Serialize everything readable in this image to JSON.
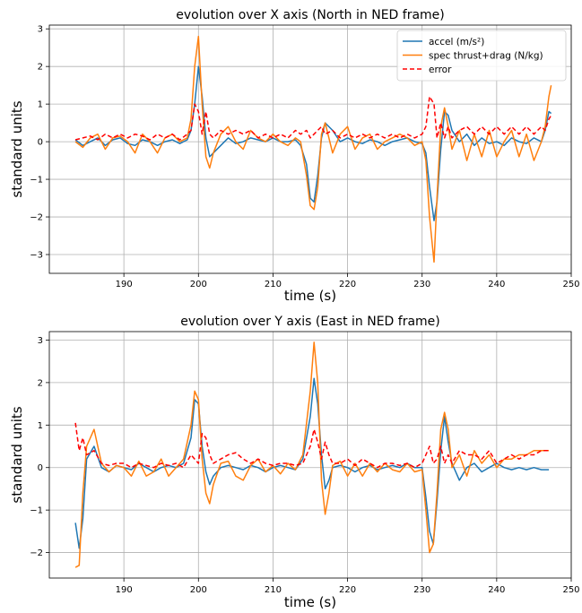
{
  "chart_data": [
    {
      "type": "line",
      "title": "evolution over X axis (North in NED frame)",
      "xlabel": "time (s)",
      "ylabel": "standard units",
      "xlim": [
        180,
        250
      ],
      "ylim": [
        -3.5,
        3.1
      ],
      "xticks": [
        190,
        200,
        210,
        220,
        230,
        240,
        250
      ],
      "yticks": [
        3,
        2,
        1,
        0,
        -1,
        -2,
        -3
      ],
      "xtick_labels": [
        "190",
        "200",
        "210",
        "220",
        "230",
        "240",
        "250"
      ],
      "ytick_labels": [
        "3",
        "2",
        "1",
        "0",
        "−1",
        "−2",
        "−3"
      ],
      "grid": true,
      "legend_position": "upper-right",
      "series": [
        {
          "name": "accel (m/s²)",
          "color": "#1f77b4",
          "style": "solid",
          "x": [
            183.5,
            184.5,
            185.5,
            186.5,
            187.5,
            188.5,
            189.5,
            190.5,
            191.5,
            192.5,
            193.5,
            194.5,
            195.5,
            196.5,
            197.5,
            198.5,
            199.0,
            199.5,
            200.0,
            200.5,
            201.0,
            201.5,
            202.0,
            203.0,
            204.0,
            205.0,
            206.0,
            207.0,
            208.0,
            209.0,
            210.0,
            211.0,
            212.0,
            213.0,
            213.7,
            214.5,
            215.0,
            215.5,
            216.0,
            216.5,
            217.0,
            218.0,
            219.0,
            220.0,
            221.0,
            222.0,
            223.0,
            224.0,
            225.0,
            226.0,
            227.0,
            228.0,
            229.0,
            230.0,
            230.5,
            231.0,
            231.6,
            232.0,
            232.5,
            233.0,
            233.5,
            234.0,
            235.0,
            236.0,
            237.0,
            238.0,
            239.0,
            240.0,
            241.0,
            242.0,
            243.0,
            244.0,
            245.0,
            246.0,
            246.5,
            247.0,
            247.3
          ],
          "y": [
            0.05,
            -0.1,
            0.0,
            0.1,
            -0.1,
            0.05,
            0.1,
            -0.05,
            -0.1,
            0.05,
            0.0,
            -0.1,
            0.0,
            0.05,
            -0.05,
            0.05,
            0.3,
            1.0,
            2.0,
            1.2,
            0.1,
            -0.4,
            -0.3,
            -0.1,
            0.1,
            -0.05,
            0.0,
            0.1,
            0.05,
            0.0,
            0.1,
            0.0,
            0.0,
            0.05,
            -0.1,
            -0.6,
            -1.5,
            -1.6,
            -0.9,
            0.1,
            0.5,
            0.3,
            0.0,
            0.1,
            0.0,
            -0.05,
            0.05,
            0.0,
            -0.1,
            0.0,
            0.05,
            0.1,
            0.0,
            -0.05,
            -0.3,
            -1.2,
            -2.1,
            -1.6,
            -0.2,
            0.8,
            0.7,
            0.3,
            0.0,
            0.2,
            -0.1,
            0.1,
            -0.05,
            0.0,
            -0.1,
            0.1,
            0.0,
            -0.05,
            0.1,
            0.0,
            0.3,
            0.8,
            0.75
          ]
        },
        {
          "name": "spec thrust+drag (N/kg)",
          "color": "#ff7f0e",
          "style": "solid",
          "x": [
            183.5,
            184.5,
            185.5,
            186.5,
            187.5,
            188.5,
            189.5,
            190.5,
            191.5,
            192.5,
            193.5,
            194.5,
            195.5,
            196.5,
            197.5,
            198.5,
            199.0,
            199.5,
            200.0,
            200.5,
            201.0,
            201.5,
            202.0,
            203.0,
            204.0,
            205.0,
            206.0,
            207.0,
            208.0,
            209.0,
            210.0,
            211.0,
            212.0,
            213.0,
            213.7,
            214.5,
            215.0,
            215.5,
            216.0,
            216.5,
            217.0,
            218.0,
            219.0,
            220.0,
            221.0,
            222.0,
            223.0,
            224.0,
            225.0,
            226.0,
            227.0,
            228.0,
            229.0,
            230.0,
            230.5,
            231.0,
            231.6,
            232.0,
            232.5,
            233.0,
            233.5,
            234.0,
            235.0,
            236.0,
            237.0,
            238.0,
            239.0,
            240.0,
            241.0,
            242.0,
            243.0,
            244.0,
            245.0,
            246.0,
            246.5,
            247.0,
            247.3
          ],
          "y": [
            0.0,
            -0.15,
            0.1,
            0.2,
            -0.2,
            0.1,
            0.15,
            0.0,
            -0.3,
            0.2,
            0.0,
            -0.3,
            0.1,
            0.2,
            0.0,
            0.1,
            0.6,
            2.0,
            2.8,
            1.0,
            -0.4,
            -0.7,
            -0.3,
            0.2,
            0.4,
            0.0,
            -0.2,
            0.3,
            0.1,
            0.0,
            0.2,
            0.0,
            -0.1,
            0.1,
            0.0,
            -0.9,
            -1.7,
            -1.8,
            -1.2,
            0.2,
            0.5,
            -0.3,
            0.2,
            0.4,
            -0.2,
            0.1,
            0.2,
            -0.2,
            0.0,
            0.1,
            0.2,
            0.1,
            -0.1,
            0.0,
            -0.5,
            -2.0,
            -3.2,
            -1.5,
            0.4,
            0.9,
            0.4,
            -0.2,
            0.3,
            -0.5,
            0.2,
            -0.4,
            0.3,
            -0.4,
            0.0,
            0.3,
            -0.4,
            0.2,
            -0.5,
            0.0,
            0.4,
            1.2,
            1.5
          ]
        },
        {
          "name": "error",
          "color": "#ff0000",
          "style": "dashed",
          "x": [
            183.5,
            184.5,
            185.5,
            186.5,
            187.5,
            188.5,
            189.5,
            190.5,
            191.5,
            192.5,
            193.5,
            194.5,
            195.5,
            196.5,
            197.5,
            198.5,
            199.0,
            199.5,
            200.0,
            200.5,
            201.0,
            201.5,
            202.0,
            203.0,
            204.0,
            205.0,
            206.0,
            207.0,
            208.0,
            209.0,
            210.0,
            211.0,
            212.0,
            213.0,
            213.7,
            214.5,
            215.0,
            215.5,
            216.0,
            216.5,
            217.0,
            218.0,
            219.0,
            220.0,
            221.0,
            222.0,
            223.0,
            224.0,
            225.0,
            226.0,
            227.0,
            228.0,
            229.0,
            230.0,
            230.5,
            231.0,
            231.6,
            232.0,
            232.5,
            233.0,
            233.5,
            234.0,
            235.0,
            236.0,
            237.0,
            238.0,
            239.0,
            240.0,
            241.0,
            242.0,
            243.0,
            244.0,
            245.0,
            246.0,
            246.5,
            247.0,
            247.3
          ],
          "y": [
            0.05,
            0.1,
            0.15,
            0.05,
            0.2,
            0.1,
            0.2,
            0.1,
            0.2,
            0.15,
            0.05,
            0.2,
            0.1,
            0.2,
            0.05,
            0.2,
            0.3,
            1.0,
            0.8,
            0.2,
            0.8,
            0.2,
            0.1,
            0.3,
            0.2,
            0.3,
            0.2,
            0.3,
            0.1,
            0.2,
            0.1,
            0.2,
            0.1,
            0.3,
            0.2,
            0.3,
            0.1,
            0.2,
            0.3,
            0.4,
            0.2,
            0.3,
            0.1,
            0.2,
            0.1,
            0.2,
            0.1,
            0.2,
            0.1,
            0.2,
            0.1,
            0.2,
            0.1,
            0.2,
            0.4,
            1.2,
            1.0,
            0.1,
            0.5,
            0.1,
            0.4,
            0.1,
            0.3,
            0.4,
            0.2,
            0.4,
            0.2,
            0.4,
            0.2,
            0.4,
            0.2,
            0.4,
            0.2,
            0.4,
            0.3,
            0.6,
            0.7
          ]
        }
      ]
    },
    {
      "type": "line",
      "title": "evolution over Y axis (East in NED frame)",
      "xlabel": "time (s)",
      "ylabel": "standard units",
      "xlim": [
        180,
        250
      ],
      "ylim": [
        -2.6,
        3.2
      ],
      "xticks": [
        190,
        200,
        210,
        220,
        230,
        240,
        250
      ],
      "yticks": [
        3,
        2,
        1,
        0,
        -1,
        -2
      ],
      "xtick_labels": [
        "190",
        "200",
        "210",
        "220",
        "230",
        "240",
        "250"
      ],
      "ytick_labels": [
        "3",
        "2",
        "1",
        "0",
        "−1",
        "−2"
      ],
      "grid": true,
      "series": [
        {
          "name": "accel (m/s²)",
          "color": "#1f77b4",
          "style": "solid",
          "x": [
            183.5,
            184.0,
            184.5,
            185.0,
            186.0,
            187.0,
            188.0,
            189.0,
            190.0,
            191.0,
            192.0,
            193.0,
            194.0,
            195.0,
            196.0,
            197.0,
            198.0,
            199.0,
            199.5,
            200.0,
            200.5,
            201.0,
            201.5,
            202.0,
            203.0,
            204.0,
            205.0,
            206.0,
            207.0,
            208.0,
            209.0,
            210.0,
            211.0,
            212.0,
            213.0,
            214.0,
            215.0,
            215.5,
            216.0,
            216.5,
            217.0,
            217.5,
            218.0,
            219.0,
            220.0,
            221.0,
            222.0,
            223.0,
            224.0,
            225.0,
            226.0,
            227.0,
            228.0,
            229.0,
            230.0,
            230.5,
            231.0,
            231.5,
            232.0,
            232.5,
            233.0,
            233.5,
            234.0,
            235.0,
            236.0,
            237.0,
            238.0,
            239.0,
            240.0,
            241.0,
            242.0,
            243.0,
            244.0,
            245.0,
            246.0,
            247.0
          ],
          "y": [
            -1.3,
            -1.9,
            -1.2,
            0.2,
            0.5,
            0.0,
            -0.1,
            0.05,
            0.0,
            -0.05,
            0.1,
            0.0,
            -0.1,
            0.0,
            0.05,
            0.0,
            0.1,
            0.7,
            1.6,
            1.5,
            0.5,
            -0.1,
            -0.4,
            -0.2,
            0.0,
            0.05,
            0.0,
            -0.05,
            0.05,
            0.0,
            -0.1,
            0.0,
            0.05,
            0.0,
            -0.05,
            0.2,
            1.2,
            2.1,
            1.5,
            0.3,
            -0.5,
            -0.3,
            0.0,
            0.05,
            0.0,
            -0.1,
            0.0,
            0.05,
            -0.05,
            0.0,
            0.05,
            0.0,
            0.1,
            0.0,
            0.0,
            -0.7,
            -1.5,
            -1.8,
            -0.8,
            0.4,
            1.2,
            0.6,
            0.1,
            -0.3,
            0.0,
            0.1,
            -0.1,
            0.0,
            0.1,
            0.0,
            -0.05,
            0.0,
            -0.05,
            0.0,
            -0.05,
            -0.05
          ]
        },
        {
          "name": "spec thrust+drag (N/kg)",
          "color": "#ff7f0e",
          "style": "solid",
          "x": [
            183.5,
            184.0,
            184.5,
            185.0,
            186.0,
            187.0,
            188.0,
            189.0,
            190.0,
            191.0,
            192.0,
            193.0,
            194.0,
            195.0,
            196.0,
            197.0,
            198.0,
            199.0,
            199.5,
            200.0,
            200.5,
            201.0,
            201.5,
            202.0,
            203.0,
            204.0,
            205.0,
            206.0,
            207.0,
            208.0,
            209.0,
            210.0,
            211.0,
            212.0,
            213.0,
            214.0,
            215.0,
            215.5,
            216.0,
            216.5,
            217.0,
            217.5,
            218.0,
            219.0,
            220.0,
            221.0,
            222.0,
            223.0,
            224.0,
            225.0,
            226.0,
            227.0,
            228.0,
            229.0,
            230.0,
            230.5,
            231.0,
            231.5,
            232.0,
            232.5,
            233.0,
            233.5,
            234.0,
            235.0,
            236.0,
            237.0,
            238.0,
            239.0,
            240.0,
            241.0,
            242.0,
            243.0,
            244.0,
            245.0,
            246.0,
            247.0
          ],
          "y": [
            -2.35,
            -2.3,
            -0.6,
            0.5,
            0.9,
            0.1,
            -0.1,
            0.05,
            0.0,
            -0.2,
            0.15,
            -0.2,
            -0.1,
            0.2,
            -0.2,
            0.0,
            0.2,
            1.0,
            1.8,
            1.6,
            0.2,
            -0.6,
            -0.85,
            -0.4,
            0.1,
            0.15,
            -0.2,
            -0.3,
            0.05,
            0.2,
            -0.1,
            0.05,
            -0.15,
            0.1,
            -0.05,
            0.3,
            1.8,
            2.95,
            2.0,
            -0.3,
            -1.1,
            -0.6,
            0.05,
            0.15,
            -0.2,
            0.1,
            -0.2,
            0.1,
            -0.1,
            0.1,
            -0.05,
            -0.1,
            0.1,
            -0.1,
            -0.05,
            -1.0,
            -2.0,
            -1.8,
            -0.6,
            0.9,
            1.3,
            0.9,
            0.0,
            0.3,
            -0.2,
            0.4,
            0.1,
            0.3,
            0.0,
            0.2,
            0.2,
            0.3,
            0.3,
            0.4,
            0.4,
            0.4
          ]
        },
        {
          "name": "error",
          "color": "#ff0000",
          "style": "dashed",
          "x": [
            183.5,
            184.0,
            184.5,
            185.0,
            186.0,
            187.0,
            188.0,
            189.0,
            190.0,
            191.0,
            192.0,
            193.0,
            194.0,
            195.0,
            196.0,
            197.0,
            198.0,
            199.0,
            199.5,
            200.0,
            200.5,
            201.0,
            201.5,
            202.0,
            203.0,
            204.0,
            205.0,
            206.0,
            207.0,
            208.0,
            209.0,
            210.0,
            211.0,
            212.0,
            213.0,
            214.0,
            215.0,
            215.5,
            216.0,
            216.5,
            217.0,
            217.5,
            218.0,
            219.0,
            220.0,
            221.0,
            222.0,
            223.0,
            224.0,
            225.0,
            226.0,
            227.0,
            228.0,
            229.0,
            230.0,
            230.5,
            231.0,
            231.5,
            232.0,
            232.5,
            233.0,
            233.5,
            234.0,
            235.0,
            236.0,
            237.0,
            238.0,
            239.0,
            240.0,
            241.0,
            242.0,
            243.0,
            244.0,
            245.0,
            246.0,
            247.0
          ],
          "y": [
            1.05,
            0.4,
            0.7,
            0.3,
            0.4,
            0.1,
            0.05,
            0.1,
            0.1,
            0.0,
            0.1,
            0.05,
            0.0,
            0.1,
            0.05,
            0.1,
            0.0,
            0.3,
            0.2,
            0.1,
            0.8,
            0.7,
            0.3,
            0.1,
            0.2,
            0.3,
            0.35,
            0.2,
            0.1,
            0.2,
            0.1,
            0.05,
            0.1,
            0.1,
            0.05,
            0.1,
            0.5,
            0.9,
            0.6,
            0.2,
            0.6,
            0.3,
            0.1,
            0.1,
            0.2,
            0.05,
            0.2,
            0.1,
            0.0,
            0.1,
            0.1,
            0.05,
            0.1,
            0.0,
            0.1,
            0.3,
            0.5,
            0.1,
            0.2,
            0.5,
            0.1,
            0.3,
            0.1,
            0.4,
            0.3,
            0.3,
            0.2,
            0.4,
            0.1,
            0.2,
            0.3,
            0.2,
            0.3,
            0.3,
            0.4,
            0.4
          ]
        }
      ]
    }
  ]
}
